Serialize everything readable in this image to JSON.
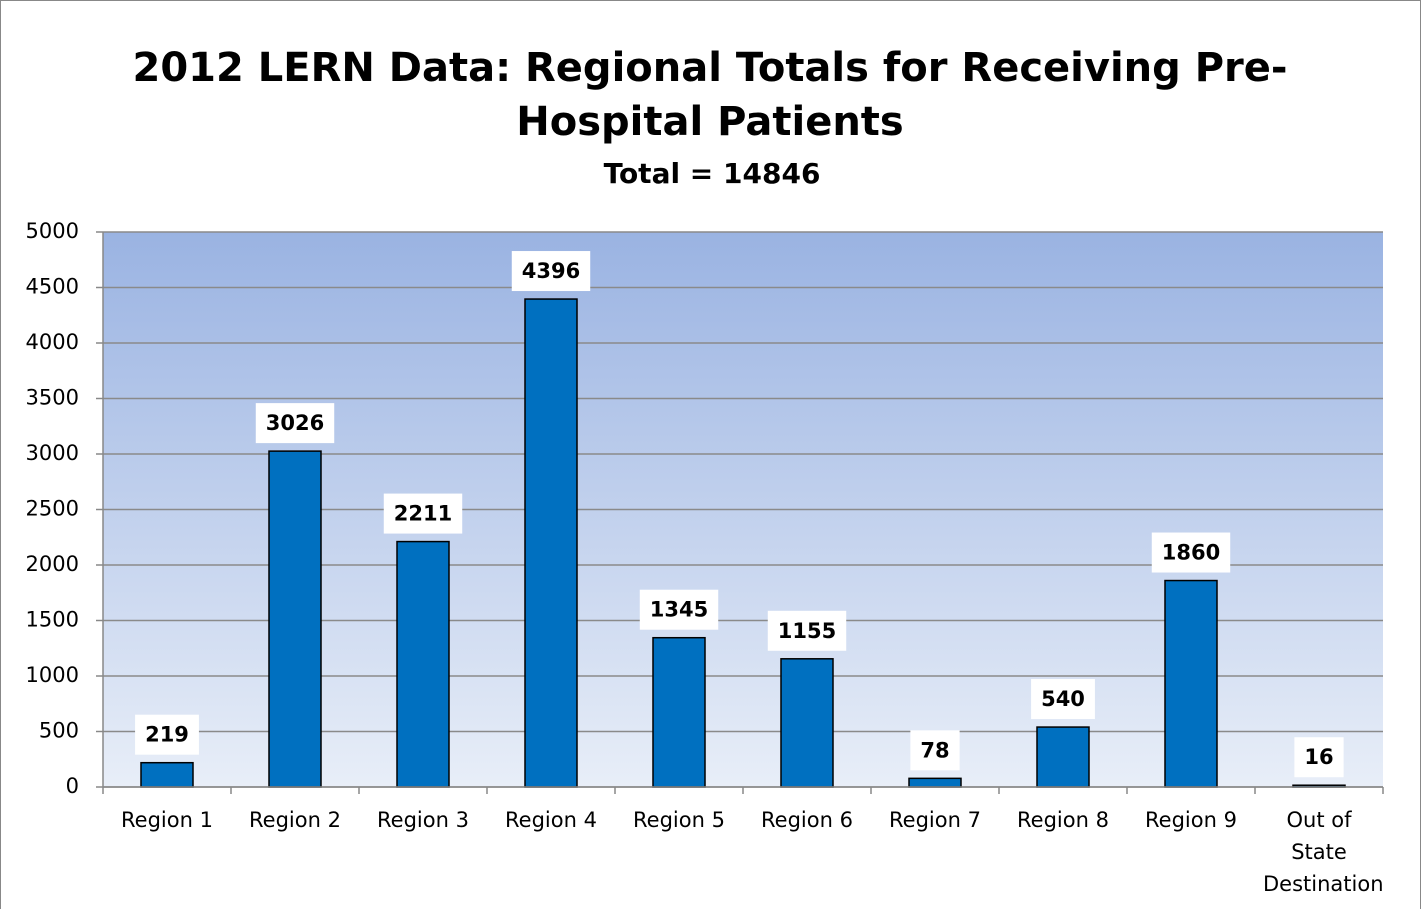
{
  "chart_data": {
    "type": "bar",
    "title": [
      "2012 LERN Data: Regional Totals for Receiving Pre-",
      "Hospital Patients"
    ],
    "subtitle": "Total = 14846",
    "categories": [
      "Region 1",
      "Region 2",
      "Region 3",
      "Region 4",
      "Region 5",
      "Region 6",
      "Region 7",
      "Region 8",
      "Region 9",
      "Out of State Destination"
    ],
    "values": [
      219,
      3026,
      2211,
      4396,
      1345,
      1155,
      78,
      540,
      1860,
      16
    ],
    "color": "#0070c0",
    "ylim": [
      0,
      5000
    ],
    "yticks": [
      0,
      500,
      1000,
      1500,
      2000,
      2500,
      3000,
      3500,
      4000,
      4500,
      5000
    ],
    "grid": true
  }
}
